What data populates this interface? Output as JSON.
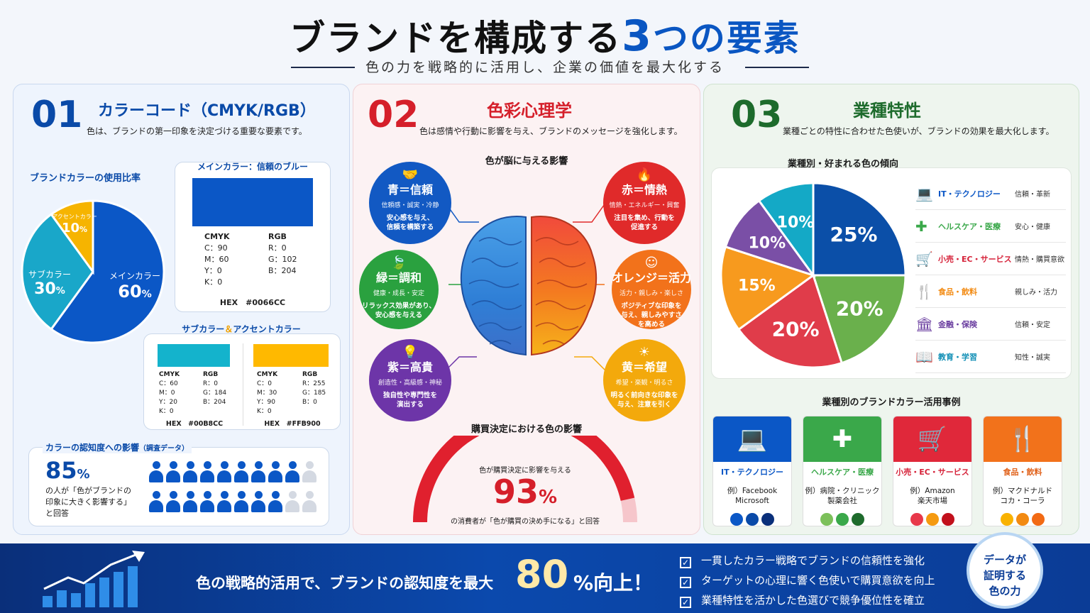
{
  "header": {
    "title_a": "ブランドを構成する",
    "title_num": "3",
    "title_b": "つの要素",
    "subtitle": "色の力を戦略的に活用し、企業の価値を最大化する"
  },
  "p1": {
    "num": "01",
    "title": "カラーコード（CMYK/RGB）",
    "desc": "色は、ブランドの第一印象を決定づける重要な要素です。",
    "usage_title": "ブランドカラーの使用比率",
    "usage": [
      {
        "label": "メインカラー",
        "pct": "60",
        "unit": "%",
        "value": 60,
        "color": "#0b57c6"
      },
      {
        "label": "サブカラー",
        "pct": "30",
        "unit": "%",
        "value": 30,
        "color": "#19a7c9"
      },
      {
        "label": "アクセントカラー",
        "pct": "10",
        "unit": "%",
        "value": 10,
        "color": "#f6b400"
      }
    ],
    "main_title": "メインカラー：信頼のブルー",
    "main_color": "#0066CC",
    "cmyk_h": "CMYK",
    "rgb_h": "RGB",
    "main_cmyk": [
      "C：90",
      "M：60",
      "Y：0",
      "K：0"
    ],
    "main_rgb": [
      "R：0",
      "G：102",
      "B：204"
    ],
    "main_hex": "HEX　#0066CC",
    "sub_title_a": "サブカラー",
    "sub_title_amp": "＆",
    "sub_title_b": "アクセントカラー",
    "sub": {
      "color": "#00B8CC",
      "cmyk": [
        "C：60",
        "M：0",
        "Y：20",
        "K：0"
      ],
      "rgb": [
        "R：0",
        "G：184",
        "B：204"
      ],
      "hex": "HEX　#00B8CC"
    },
    "acc": {
      "color": "#FFB900",
      "cmyk": [
        "C：0",
        "M：30",
        "Y：90",
        "K：0"
      ],
      "rgb": [
        "R：255",
        "G：185",
        "B：0"
      ],
      "hex": "HEX　#FFB900"
    },
    "recog_title": "カラーの認知度への影響",
    "recog_note": "（調査データ）",
    "recog_pct": "85",
    "recog_unit": "%",
    "recog_text": [
      "の人が「色がブランドの",
      "印象に大きく影響する」",
      "と回答"
    ],
    "recog_value": 85
  },
  "p2": {
    "num": "02",
    "title": "色彩心理学",
    "desc": "色は感情や行動に影響を与え、ブランドのメッセージを強化します。",
    "brain_title": "色が脳に与える影響",
    "colors": [
      {
        "h": "青＝信頼",
        "k": "信頼感・誠実・冷静",
        "d1": "安心感を与え、",
        "d2": "信頼を構築する",
        "bg": "#1259c3",
        "icon": "handshake-icon",
        "glyph": "🤝"
      },
      {
        "h": "赤＝情熱",
        "k": "情熱・エネルギー・興奮",
        "d1": "注目を集め、行動を",
        "d2": "促進する",
        "bg": "#e02a2a",
        "icon": "flame-icon",
        "glyph": "🔥"
      },
      {
        "h": "緑＝調和",
        "k": "健康・成長・安定",
        "d1": "リラックス効果があり、",
        "d2": "安心感を与える",
        "bg": "#2aa13f",
        "icon": "leaf-icon",
        "glyph": "🍃"
      },
      {
        "h": "オレンジ＝活力",
        "k": "活力・親しみ・楽しさ",
        "d1": "ポジティブな印象を",
        "d2": "与え、親しみやすさ",
        "d3": "を高める",
        "bg": "#f2721b",
        "icon": "smile-icon",
        "glyph": "☺"
      },
      {
        "h": "紫＝高貴",
        "k": "創造性・高級感・神秘",
        "d1": "独自性や専門性を",
        "d2": "演出する",
        "bg": "#6d35a8",
        "icon": "bulb-icon",
        "glyph": "💡"
      },
      {
        "h": "黄＝希望",
        "k": "希望・楽観・明るさ",
        "d1": "明るく前向きな印象を",
        "d2": "与え、注意を引く",
        "bg": "#f3a90c",
        "icon": "sun-icon",
        "glyph": "☀"
      }
    ],
    "purchase_title": "購買決定における色の影響",
    "purchase_lead": "色が購買決定に影響を与える",
    "purchase_pct": "93",
    "purchase_unit": "%",
    "purchase_value": 93,
    "purchase_text": "の消費者が「色が購買の決め手になる」と回答"
  },
  "p3": {
    "num": "03",
    "title": "業種特性",
    "desc": "業種ごとの特性に合わせた色使いが、ブランドの効果を最大化します。",
    "pref_title": "業種別・好まれる色の傾向",
    "chart_data": {
      "type": "pie",
      "values": [
        25,
        20,
        20,
        15,
        10,
        10
      ],
      "labels": [
        "25%",
        "20%",
        "20%",
        "15%",
        "10%",
        "10%"
      ],
      "colors": [
        "#0b4fa8",
        "#6ab04c",
        "#e03c4a",
        "#f79a1e",
        "#7a4fa6",
        "#14a9c6"
      ]
    },
    "industries": [
      {
        "name": "IT・テクノロジー",
        "kw": "信頼・革新",
        "color": "#0b57c6",
        "icon": "laptop-icon",
        "glyph": "💻"
      },
      {
        "name": "ヘルスケア・医療",
        "kw": "安心・健康",
        "color": "#3aa84a",
        "icon": "medical-cross-icon",
        "glyph": "✚"
      },
      {
        "name": "小売・EC・サービス",
        "kw": "情熱・購買意欲",
        "color": "#d6233a",
        "icon": "cart-icon",
        "glyph": "🛒"
      },
      {
        "name": "食品・飲料",
        "kw": "親しみ・活力",
        "color": "#f28a12",
        "icon": "fork-knife-icon",
        "glyph": "🍴"
      },
      {
        "name": "金融・保険",
        "kw": "信頼・安定",
        "color": "#6b3fa0",
        "icon": "bank-icon",
        "glyph": "🏛"
      },
      {
        "name": "教育・学習",
        "kw": "知性・誠実",
        "color": "#1390b6",
        "icon": "book-icon",
        "glyph": "📖"
      }
    ],
    "cases_title": "業種別のブランドカラー活用事例",
    "cases": [
      {
        "name": "IT・テクノロジー",
        "ex1": "例）Facebook",
        "ex2": "Microsoft",
        "bg": "#0b57c6",
        "tc": "#0b57c6",
        "dots": [
          "#0b57c6",
          "#0a4aa8",
          "#0a2f7a"
        ],
        "icon": "laptop-icon",
        "glyph": "💻"
      },
      {
        "name": "ヘルスケア・医療",
        "ex1": "例）病院・クリニック",
        "ex2": "製薬会社",
        "bg": "#3aa84a",
        "tc": "#3aa84a",
        "dots": [
          "#7cc05a",
          "#3aa84a",
          "#1e6b2c"
        ],
        "icon": "medical-cross-icon",
        "glyph": "✚"
      },
      {
        "name": "小売・EC・サービス",
        "ex1": "例）Amazon",
        "ex2": "楽天市場",
        "bg": "#e0283a",
        "tc": "#d6233a",
        "dots": [
          "#e8384a",
          "#f59a10",
          "#c2101c"
        ],
        "icon": "cart-icon",
        "glyph": "🛒"
      },
      {
        "name": "食品・飲料",
        "ex1": "例）マクドナルド",
        "ex2": "コカ・コーラ",
        "bg": "#f2721b",
        "tc": "#e0611a",
        "dots": [
          "#f9b200",
          "#f28a12",
          "#f26a14"
        ],
        "icon": "fork-knife-icon",
        "glyph": "🍴"
      }
    ]
  },
  "bottom": {
    "lead": "色の戦略的活用で、ブランドの認知度を最大",
    "num": "80",
    "tail": "%向上！",
    "checks": [
      "一貫したカラー戦略でブランドの信頼性を強化",
      "ターゲットの心理に響く色使いで購買意欲を向上",
      "業種特性を活かした色選びで競争優位性を確立"
    ],
    "badge": [
      "データが",
      "証明する",
      "色の力"
    ]
  }
}
